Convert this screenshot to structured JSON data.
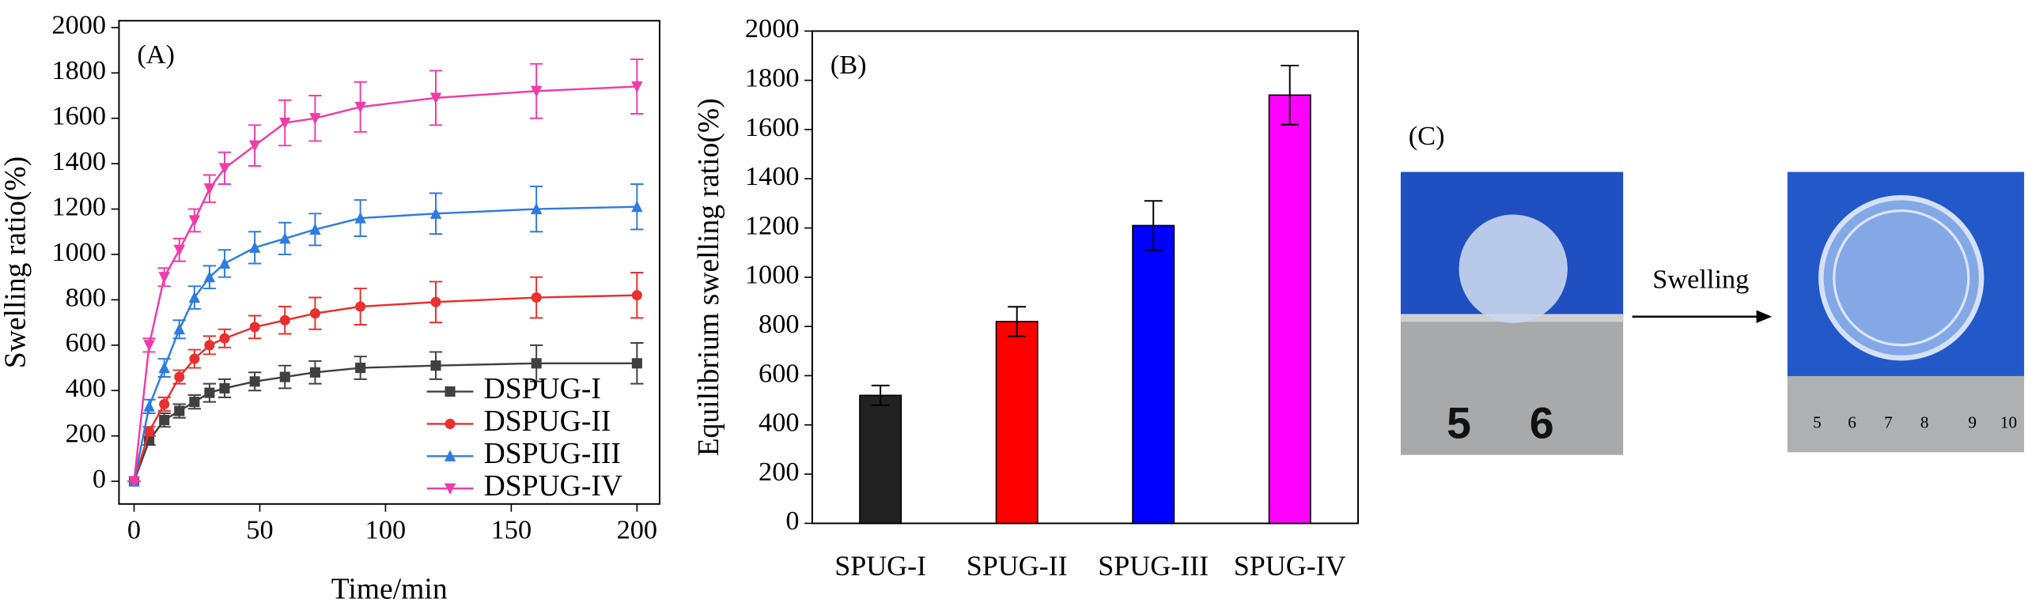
{
  "chart_data": [
    {
      "type": "line",
      "panel_label": "(A)",
      "xlabel": "Time/min",
      "ylabel": "Swelling ratio(%)",
      "x": [
        0,
        6,
        12,
        18,
        24,
        30,
        36,
        48,
        60,
        72,
        90,
        120,
        160,
        200
      ],
      "xlim": [
        -6,
        209
      ],
      "xticks": [
        0,
        50,
        100,
        150,
        200
      ],
      "ylim": [
        -100,
        2030
      ],
      "yticks": [
        0,
        200,
        400,
        600,
        800,
        1000,
        1200,
        1400,
        1600,
        1800,
        2000
      ],
      "legend": "lower right",
      "series": [
        {
          "name": "DSPUG-I",
          "color": "#404040",
          "marker": "square",
          "values": [
            0,
            180,
            270,
            310,
            350,
            390,
            410,
            440,
            460,
            480,
            500,
            510,
            520,
            520
          ],
          "errors": [
            0,
            20,
            30,
            30,
            30,
            40,
            40,
            40,
            50,
            50,
            50,
            60,
            80,
            90
          ]
        },
        {
          "name": "DSPUG-II",
          "color": "#e8302f",
          "marker": "circle",
          "values": [
            0,
            220,
            340,
            460,
            540,
            600,
            630,
            680,
            710,
            740,
            770,
            790,
            810,
            820
          ],
          "errors": [
            0,
            20,
            30,
            30,
            40,
            40,
            40,
            50,
            60,
            70,
            80,
            90,
            90,
            100
          ]
        },
        {
          "name": "DSPUG-III",
          "color": "#2f7be0",
          "marker": "triangle-up",
          "values": [
            0,
            330,
            500,
            670,
            810,
            900,
            960,
            1030,
            1070,
            1110,
            1160,
            1180,
            1200,
            1210
          ],
          "errors": [
            0,
            30,
            40,
            40,
            50,
            50,
            60,
            70,
            70,
            70,
            80,
            90,
            100,
            100
          ]
        },
        {
          "name": "DSPUG-IV",
          "color": "#f03ca8",
          "marker": "triangle-down",
          "values": [
            0,
            600,
            900,
            1020,
            1150,
            1290,
            1380,
            1480,
            1580,
            1600,
            1650,
            1690,
            1720,
            1740
          ],
          "errors": [
            0,
            30,
            40,
            50,
            50,
            60,
            70,
            90,
            100,
            100,
            110,
            120,
            120,
            120
          ]
        }
      ]
    },
    {
      "type": "bar",
      "panel_label": "(B)",
      "ylabel": "Equilibrium swelling ratio(%)",
      "categories": [
        "SPUG-I",
        "SPUG-II",
        "SPUG-III",
        "SPUG-IV"
      ],
      "values": [
        520,
        820,
        1210,
        1740
      ],
      "errors": [
        40,
        60,
        100,
        120
      ],
      "colors": [
        "#222222",
        "#ff0000",
        "#0000ff",
        "#ff00ff"
      ],
      "ylim": [
        0,
        2000
      ],
      "yticks": [
        0,
        200,
        400,
        600,
        800,
        1000,
        1200,
        1400,
        1600,
        1800,
        2000
      ]
    }
  ],
  "photos": {
    "panel_label": "(C)",
    "arrow_label": "Swelling",
    "left_ruler_labels": [
      "5",
      "6"
    ],
    "right_ruler_labels": [
      "5",
      "6",
      "7",
      "8",
      "9",
      "10"
    ]
  }
}
